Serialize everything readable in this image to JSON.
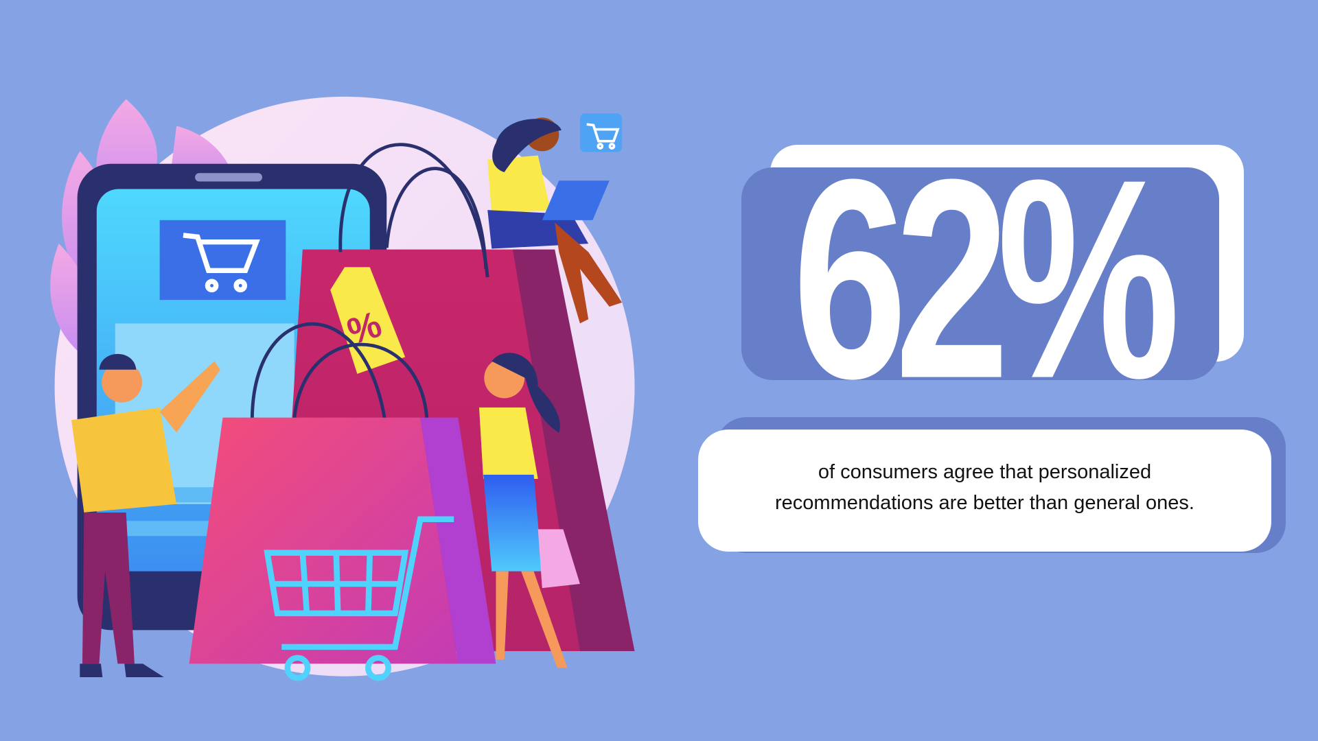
{
  "stat": {
    "value": "62%",
    "description_line1": "of consumers agree that personalized",
    "description_line2": "recommendations are better than general ones."
  },
  "illustration": {
    "tag_label": "%",
    "icons": [
      "shopping-cart-icon",
      "shopping-bag-icon",
      "laptop-icon",
      "discount-tag-icon"
    ]
  },
  "colors": {
    "background": "#85a3e4",
    "card_blue": "#677ec9",
    "card_white": "#ffffff"
  }
}
